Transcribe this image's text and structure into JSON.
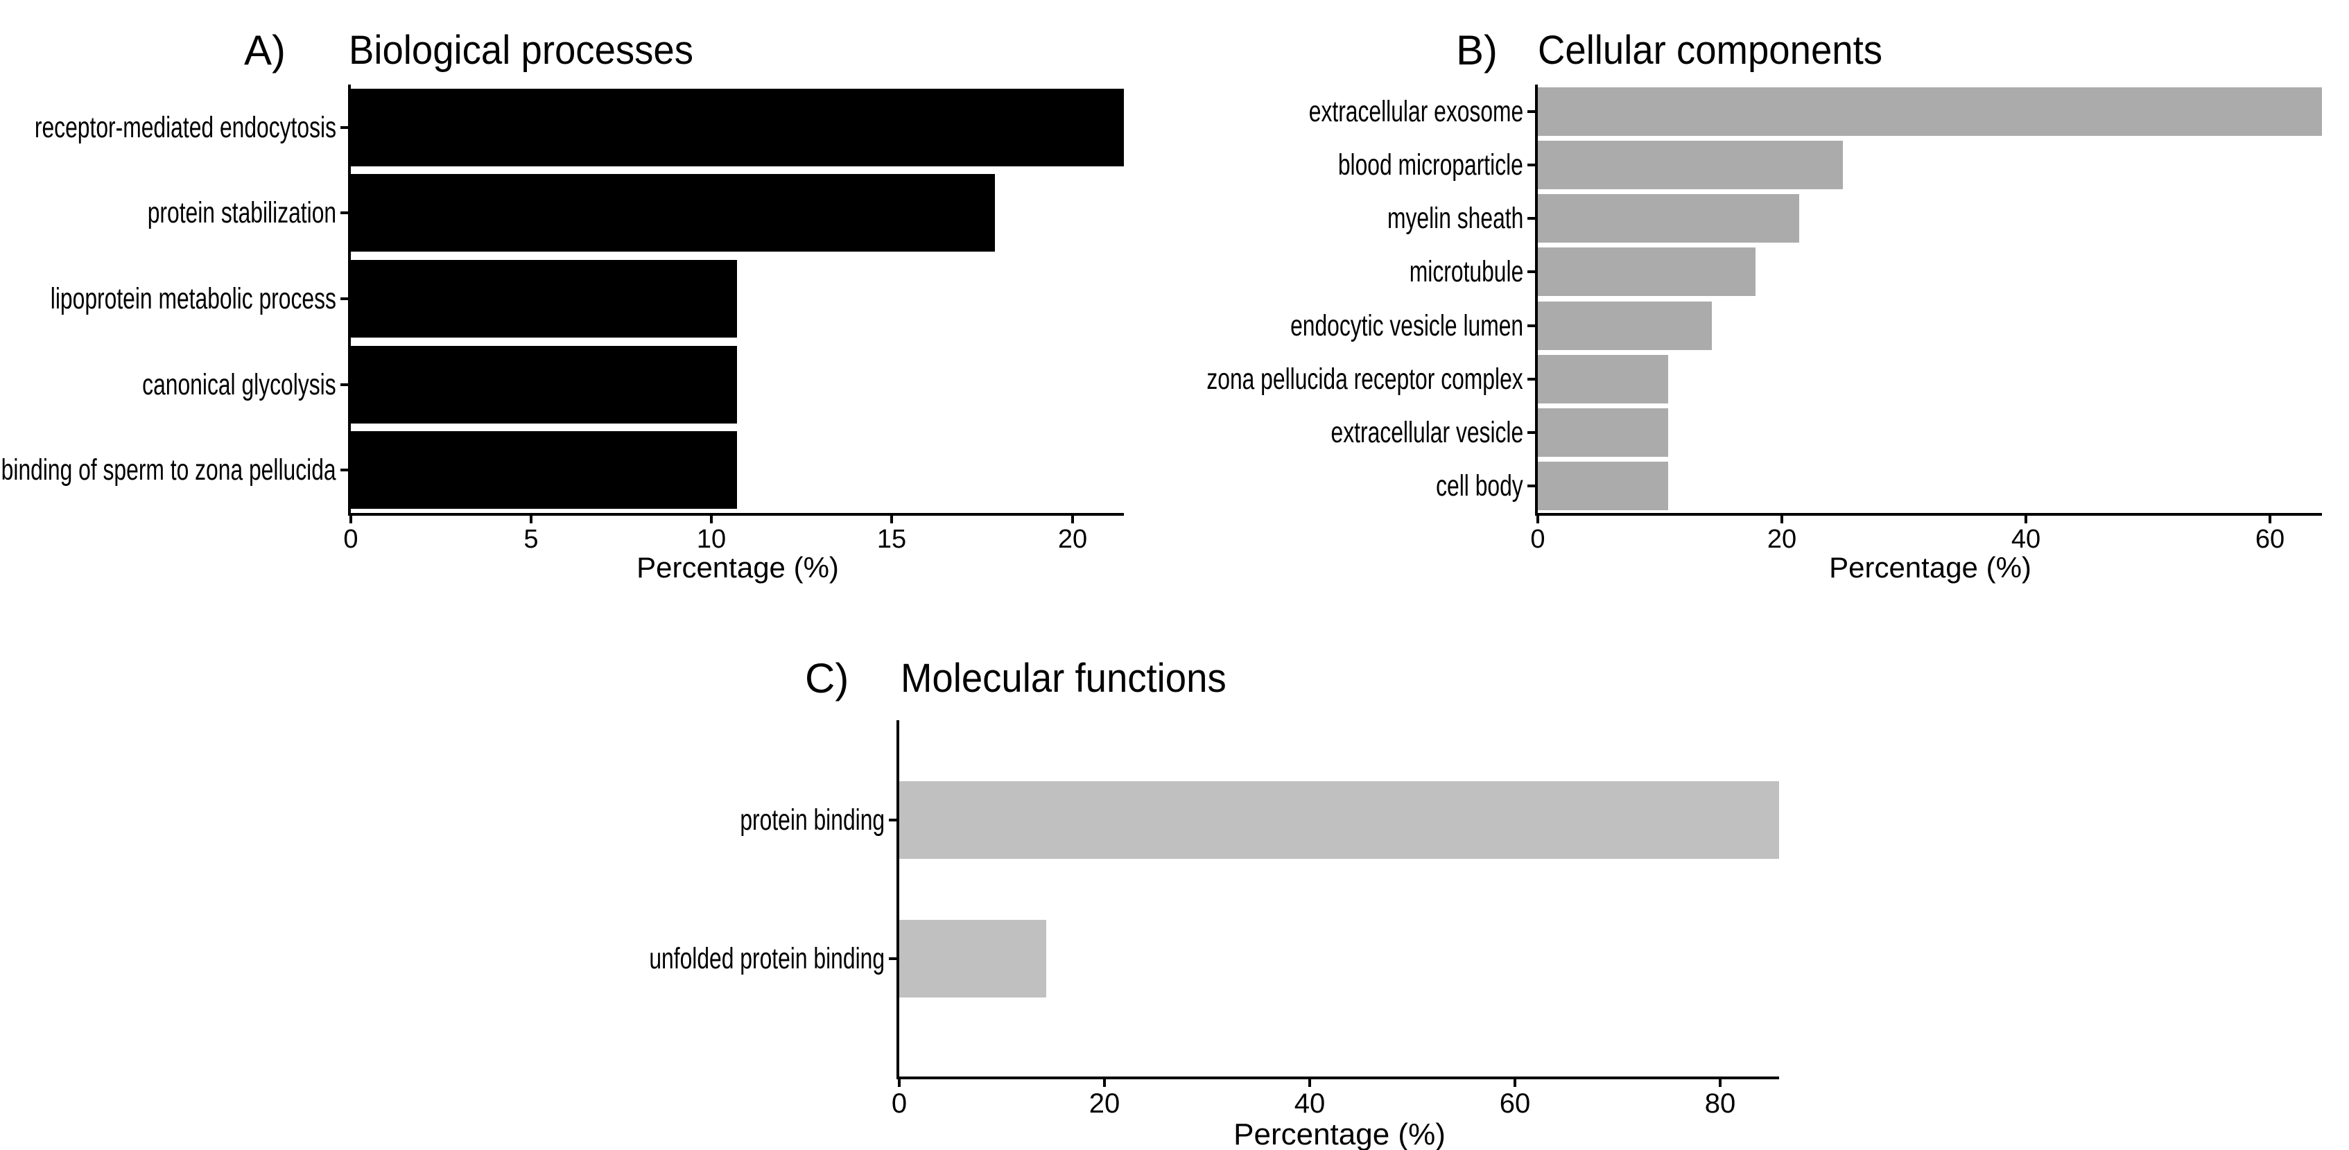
{
  "figure": {
    "background_color": "#ffffff",
    "text_color": "#000000"
  },
  "chart_data": [
    {
      "type": "bar",
      "orientation": "horizontal",
      "panel_label": "A)",
      "title": "Biological processes",
      "categories": [
        "receptor-mediated endocytosis",
        "protein stabilization",
        "lipoprotein metabolic process",
        "canonical glycolysis",
        "binding of sperm to zona pellucida"
      ],
      "values": [
        21.43,
        17.86,
        10.71,
        10.71,
        10.71
      ],
      "xlabel": "Percentage (%)",
      "xticks": [
        0,
        5,
        10,
        15,
        20
      ],
      "xlim": [
        0,
        21.43
      ],
      "bar_color": "#000000",
      "grid": false,
      "legend": false
    },
    {
      "type": "bar",
      "orientation": "horizontal",
      "panel_label": "B)",
      "title": "Cellular components",
      "categories": [
        "extracellular exosome",
        "blood microparticle",
        "myelin sheath",
        "microtubule",
        "endocytic vesicle lumen",
        "zona pellucida receptor complex",
        "extracellular vesicle",
        "cell body"
      ],
      "values": [
        64.29,
        25.0,
        21.43,
        17.86,
        14.29,
        10.71,
        10.71,
        10.71
      ],
      "xlabel": "Percentage (%)",
      "xticks": [
        0,
        20,
        40,
        60
      ],
      "xlim": [
        0,
        64.29
      ],
      "bar_color": "#ababab",
      "grid": false,
      "legend": false
    },
    {
      "type": "bar",
      "orientation": "horizontal",
      "panel_label": "C)",
      "title": "Molecular functions",
      "categories": [
        "protein binding",
        "unfolded protein binding"
      ],
      "values": [
        85.71,
        14.29
      ],
      "xlabel": "Percentage (%)",
      "xticks": [
        0,
        20,
        40,
        60,
        80
      ],
      "xlim": [
        0,
        85.71
      ],
      "bar_color": "#c0c0c0",
      "grid": false,
      "legend": false
    }
  ]
}
